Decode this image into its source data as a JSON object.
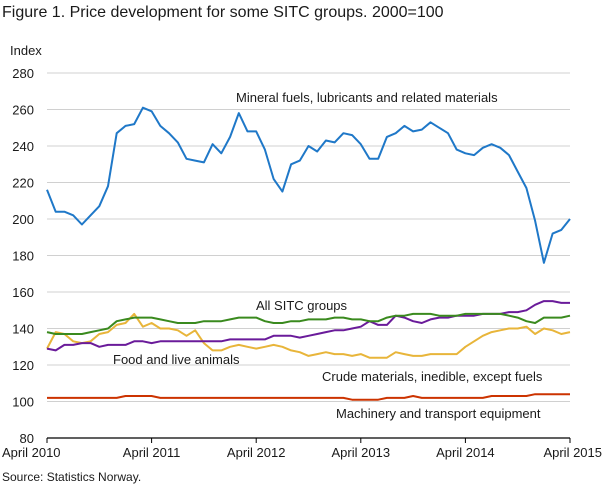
{
  "title": "Figure 1. Price development for some SITC groups. 2000=100",
  "source": "Source: Statistics Norway.",
  "chart_data": {
    "type": "line",
    "title": "Figure 1. Price development for some SITC groups. 2000=100",
    "ylabel": "Index",
    "xlabel": "",
    "ylim": [
      80,
      280
    ],
    "yticks": [
      80,
      100,
      120,
      140,
      160,
      180,
      200,
      220,
      240,
      260,
      280
    ],
    "xticks": [
      "April 2010",
      "April 2011",
      "April 2012",
      "April 2013",
      "April 2014",
      "April 2015"
    ],
    "x_start": "April 2010",
    "x_end": "April 2015",
    "grid": "horizontal",
    "x": [
      "Apr 2010",
      "May 2010",
      "Jun 2010",
      "Jul 2010",
      "Aug 2010",
      "Sep 2010",
      "Oct 2010",
      "Nov 2010",
      "Dec 2010",
      "Jan 2011",
      "Feb 2011",
      "Mar 2011",
      "Apr 2011",
      "May 2011",
      "Jun 2011",
      "Jul 2011",
      "Aug 2011",
      "Sep 2011",
      "Oct 2011",
      "Nov 2011",
      "Dec 2011",
      "Jan 2012",
      "Feb 2012",
      "Mar 2012",
      "Apr 2012",
      "May 2012",
      "Jun 2012",
      "Jul 2012",
      "Aug 2012",
      "Sep 2012",
      "Oct 2012",
      "Nov 2012",
      "Dec 2012",
      "Jan 2013",
      "Feb 2013",
      "Mar 2013",
      "Apr 2013",
      "May 2013",
      "Jun 2013",
      "Jul 2013",
      "Aug 2013",
      "Sep 2013",
      "Oct 2013",
      "Nov 2013",
      "Dec 2013",
      "Jan 2014",
      "Feb 2014",
      "Mar 2014",
      "Apr 2014",
      "May 2014",
      "Jun 2014",
      "Jul 2014",
      "Aug 2014",
      "Sep 2014",
      "Oct 2014",
      "Nov 2014",
      "Dec 2014",
      "Jan 2015",
      "Feb 2015",
      "Mar 2015",
      "Apr 2015"
    ],
    "series": [
      {
        "name": "Mineral fuels, lubricants and related materials",
        "color": "#1f78c8",
        "label_anchor_index": 35,
        "values": [
          216,
          204,
          204,
          202,
          197,
          202,
          207,
          218,
          247,
          251,
          252,
          261,
          259,
          251,
          247,
          242,
          233,
          232,
          231,
          241,
          236,
          245,
          258,
          248,
          248,
          238,
          222,
          215,
          230,
          232,
          240,
          237,
          243,
          242,
          247,
          246,
          241,
          233,
          233,
          245,
          247,
          251,
          248,
          249,
          253,
          250,
          247,
          238,
          236,
          235,
          239,
          241,
          239,
          235,
          226,
          217,
          199,
          176,
          192,
          194,
          200
        ],
        "label": "Mineral fuels, lubricants and related materials"
      },
      {
        "name": "All SITC groups",
        "color": "#3a8a1e",
        "label_anchor_index": 23,
        "values": [
          138,
          137,
          137,
          137,
          137,
          138,
          139,
          140,
          144,
          145,
          146,
          146,
          146,
          145,
          144,
          143,
          143,
          143,
          144,
          144,
          144,
          145,
          146,
          146,
          146,
          144,
          143,
          143,
          144,
          144,
          145,
          145,
          145,
          146,
          146,
          145,
          145,
          144,
          144,
          146,
          147,
          147,
          148,
          148,
          148,
          147,
          147,
          147,
          148,
          148,
          148,
          148,
          148,
          147,
          146,
          144,
          143,
          146,
          146,
          146,
          147
        ],
        "label": "All SITC groups"
      },
      {
        "name": "Food and live animals",
        "color": "#6a1b9a",
        "label_anchor_index": 9,
        "values": [
          129,
          128,
          131,
          131,
          132,
          132,
          130,
          131,
          131,
          131,
          133,
          133,
          132,
          133,
          133,
          133,
          133,
          133,
          133,
          133,
          133,
          134,
          134,
          134,
          134,
          134,
          136,
          136,
          136,
          135,
          136,
          137,
          138,
          139,
          139,
          140,
          141,
          144,
          142,
          142,
          147,
          146,
          144,
          143,
          145,
          146,
          146,
          147,
          147,
          147,
          148,
          148,
          148,
          149,
          149,
          150,
          153,
          155,
          155,
          154,
          154
        ],
        "label": "Food and live animals"
      },
      {
        "name": "Crude materials, inedible, except fuels",
        "color": "#e8b53a",
        "label_anchor_index": 40,
        "values": [
          129,
          138,
          137,
          133,
          132,
          133,
          137,
          138,
          142,
          143,
          148,
          141,
          143,
          140,
          140,
          139,
          136,
          139,
          132,
          128,
          128,
          130,
          131,
          130,
          129,
          130,
          131,
          130,
          128,
          127,
          125,
          126,
          127,
          126,
          126,
          125,
          126,
          124,
          124,
          124,
          127,
          126,
          125,
          125,
          126,
          126,
          126,
          126,
          130,
          133,
          136,
          138,
          139,
          140,
          140,
          141,
          137,
          140,
          139,
          137,
          138
        ],
        "label": "Crude materials, inedible, except fuels"
      },
      {
        "name": "Machinery and transport equipment",
        "color": "#cc3300",
        "label_anchor_index": 45,
        "values": [
          102,
          102,
          102,
          102,
          102,
          102,
          102,
          102,
          102,
          103,
          103,
          103,
          103,
          102,
          102,
          102,
          102,
          102,
          102,
          102,
          102,
          102,
          102,
          102,
          102,
          102,
          102,
          102,
          102,
          102,
          102,
          102,
          102,
          102,
          102,
          101,
          101,
          101,
          101,
          102,
          102,
          102,
          103,
          102,
          102,
          102,
          102,
          102,
          102,
          102,
          102,
          103,
          103,
          103,
          103,
          103,
          104,
          104,
          104,
          104,
          104
        ],
        "label": "Machinery and transport equipment"
      }
    ]
  }
}
